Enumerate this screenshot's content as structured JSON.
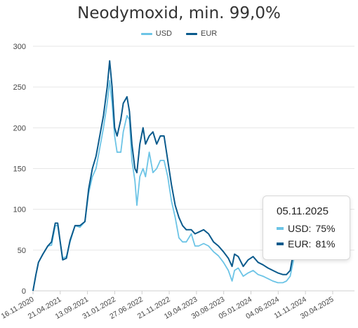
{
  "chart_data": {
    "type": "line",
    "title": "Neodymoxid, min. 99,0%",
    "ylim": [
      0,
      300
    ],
    "yticks": [
      0,
      50,
      100,
      150,
      200,
      250,
      300
    ],
    "grid": true,
    "legend_position": "top-center",
    "x_tick_labels": [
      "16.11.2020",
      "21.04.2021",
      "13.09.2021",
      "31.01.2022",
      "27.06.2022",
      "21.11.2022",
      "19.04.2023",
      "30.08.2023",
      "05.01.2024",
      "04.06.2024",
      "11.11.2024",
      "30.04.2025"
    ],
    "x_index_range": [
      0,
      1300
    ],
    "series": [
      {
        "name": "USD",
        "color": "#6cc4e6",
        "points": [
          [
            0,
            0
          ],
          [
            12,
            20
          ],
          [
            22,
            35
          ],
          [
            40,
            45
          ],
          [
            60,
            55
          ],
          [
            75,
            56
          ],
          [
            90,
            80
          ],
          [
            100,
            80
          ],
          [
            110,
            60
          ],
          [
            120,
            40
          ],
          [
            135,
            42
          ],
          [
            150,
            60
          ],
          [
            170,
            80
          ],
          [
            190,
            78
          ],
          [
            210,
            85
          ],
          [
            225,
            120
          ],
          [
            240,
            140
          ],
          [
            255,
            150
          ],
          [
            270,
            175
          ],
          [
            285,
            200
          ],
          [
            300,
            230
          ],
          [
            310,
            258
          ],
          [
            320,
            230
          ],
          [
            330,
            190
          ],
          [
            340,
            170
          ],
          [
            355,
            170
          ],
          [
            365,
            195
          ],
          [
            380,
            215
          ],
          [
            390,
            210
          ],
          [
            400,
            160
          ],
          [
            412,
            135
          ],
          [
            420,
            105
          ],
          [
            432,
            140
          ],
          [
            445,
            150
          ],
          [
            455,
            140
          ],
          [
            470,
            170
          ],
          [
            485,
            145
          ],
          [
            500,
            150
          ],
          [
            515,
            160
          ],
          [
            530,
            160
          ],
          [
            545,
            140
          ],
          [
            560,
            110
          ],
          [
            575,
            90
          ],
          [
            590,
            65
          ],
          [
            605,
            60
          ],
          [
            620,
            60
          ],
          [
            640,
            70
          ],
          [
            655,
            55
          ],
          [
            670,
            55
          ],
          [
            690,
            58
          ],
          [
            710,
            55
          ],
          [
            730,
            48
          ],
          [
            750,
            43
          ],
          [
            770,
            35
          ],
          [
            790,
            25
          ],
          [
            805,
            12
          ],
          [
            815,
            25
          ],
          [
            830,
            28
          ],
          [
            850,
            18
          ],
          [
            870,
            22
          ],
          [
            890,
            25
          ],
          [
            910,
            20
          ],
          [
            930,
            18
          ],
          [
            950,
            15
          ],
          [
            970,
            12
          ],
          [
            990,
            10
          ],
          [
            1010,
            10
          ],
          [
            1025,
            12
          ],
          [
            1040,
            18
          ],
          [
            1055,
            40
          ],
          [
            1070,
            72
          ],
          [
            1080,
            75
          ]
        ]
      },
      {
        "name": "EUR",
        "color": "#0a5a8c",
        "points": [
          [
            0,
            0
          ],
          [
            12,
            20
          ],
          [
            22,
            35
          ],
          [
            40,
            45
          ],
          [
            60,
            55
          ],
          [
            75,
            60
          ],
          [
            90,
            83
          ],
          [
            100,
            83
          ],
          [
            110,
            60
          ],
          [
            120,
            38
          ],
          [
            135,
            40
          ],
          [
            150,
            62
          ],
          [
            170,
            80
          ],
          [
            190,
            80
          ],
          [
            210,
            85
          ],
          [
            225,
            125
          ],
          [
            240,
            150
          ],
          [
            255,
            165
          ],
          [
            270,
            190
          ],
          [
            285,
            215
          ],
          [
            300,
            250
          ],
          [
            310,
            282
          ],
          [
            320,
            250
          ],
          [
            330,
            200
          ],
          [
            340,
            190
          ],
          [
            355,
            210
          ],
          [
            365,
            230
          ],
          [
            380,
            238
          ],
          [
            390,
            220
          ],
          [
            400,
            180
          ],
          [
            412,
            150
          ],
          [
            420,
            145
          ],
          [
            432,
            180
          ],
          [
            445,
            200
          ],
          [
            455,
            180
          ],
          [
            470,
            190
          ],
          [
            485,
            195
          ],
          [
            500,
            180
          ],
          [
            515,
            190
          ],
          [
            530,
            190
          ],
          [
            545,
            160
          ],
          [
            560,
            130
          ],
          [
            575,
            105
          ],
          [
            590,
            90
          ],
          [
            605,
            80
          ],
          [
            620,
            75
          ],
          [
            640,
            75
          ],
          [
            655,
            70
          ],
          [
            670,
            72
          ],
          [
            690,
            75
          ],
          [
            710,
            70
          ],
          [
            730,
            60
          ],
          [
            750,
            55
          ],
          [
            770,
            48
          ],
          [
            790,
            40
          ],
          [
            805,
            30
          ],
          [
            815,
            45
          ],
          [
            830,
            42
          ],
          [
            850,
            30
          ],
          [
            870,
            38
          ],
          [
            890,
            42
          ],
          [
            910,
            35
          ],
          [
            930,
            32
          ],
          [
            950,
            28
          ],
          [
            970,
            25
          ],
          [
            990,
            22
          ],
          [
            1010,
            20
          ],
          [
            1025,
            20
          ],
          [
            1040,
            25
          ],
          [
            1055,
            50
          ],
          [
            1070,
            78
          ],
          [
            1080,
            81
          ]
        ]
      }
    ],
    "tooltip": {
      "date": "05.11.2025",
      "usd_label": "USD:",
      "usd_value": "75%",
      "eur_label": "EUR:",
      "eur_value": "81%"
    }
  }
}
